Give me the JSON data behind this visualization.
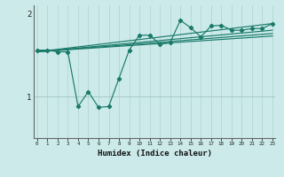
{
  "title": "",
  "xlabel": "Humidex (Indice chaleur)",
  "ylabel": "",
  "bg_color": "#cceaea",
  "line_color": "#1a7a6a",
  "grid_color": "#b8d8d8",
  "yticks": [
    1,
    2
  ],
  "xticks": [
    0,
    1,
    2,
    3,
    4,
    5,
    6,
    7,
    8,
    9,
    10,
    11,
    12,
    13,
    14,
    15,
    16,
    17,
    18,
    19,
    20,
    21,
    22,
    23
  ],
  "ylim": [
    0.5,
    2.1
  ],
  "xlim": [
    -0.3,
    23.3
  ],
  "main_series_x": [
    0,
    1,
    2,
    3,
    4,
    5,
    6,
    7,
    8,
    9,
    10,
    11,
    12,
    13,
    14,
    15,
    16,
    17,
    18,
    19,
    20,
    21,
    22,
    23
  ],
  "main_series_y": [
    1.56,
    1.56,
    1.54,
    1.54,
    0.88,
    1.06,
    0.87,
    0.88,
    1.22,
    1.56,
    1.74,
    1.74,
    1.63,
    1.65,
    1.92,
    1.83,
    1.72,
    1.85,
    1.86,
    1.8,
    1.8,
    1.82,
    1.82,
    1.88
  ],
  "line1_y": [
    1.54,
    1.88
  ],
  "line2_y": [
    1.54,
    1.8
  ],
  "line3_y": [
    1.54,
    1.76
  ],
  "line4_y": [
    1.54,
    1.73
  ],
  "line_x": [
    0,
    23
  ]
}
